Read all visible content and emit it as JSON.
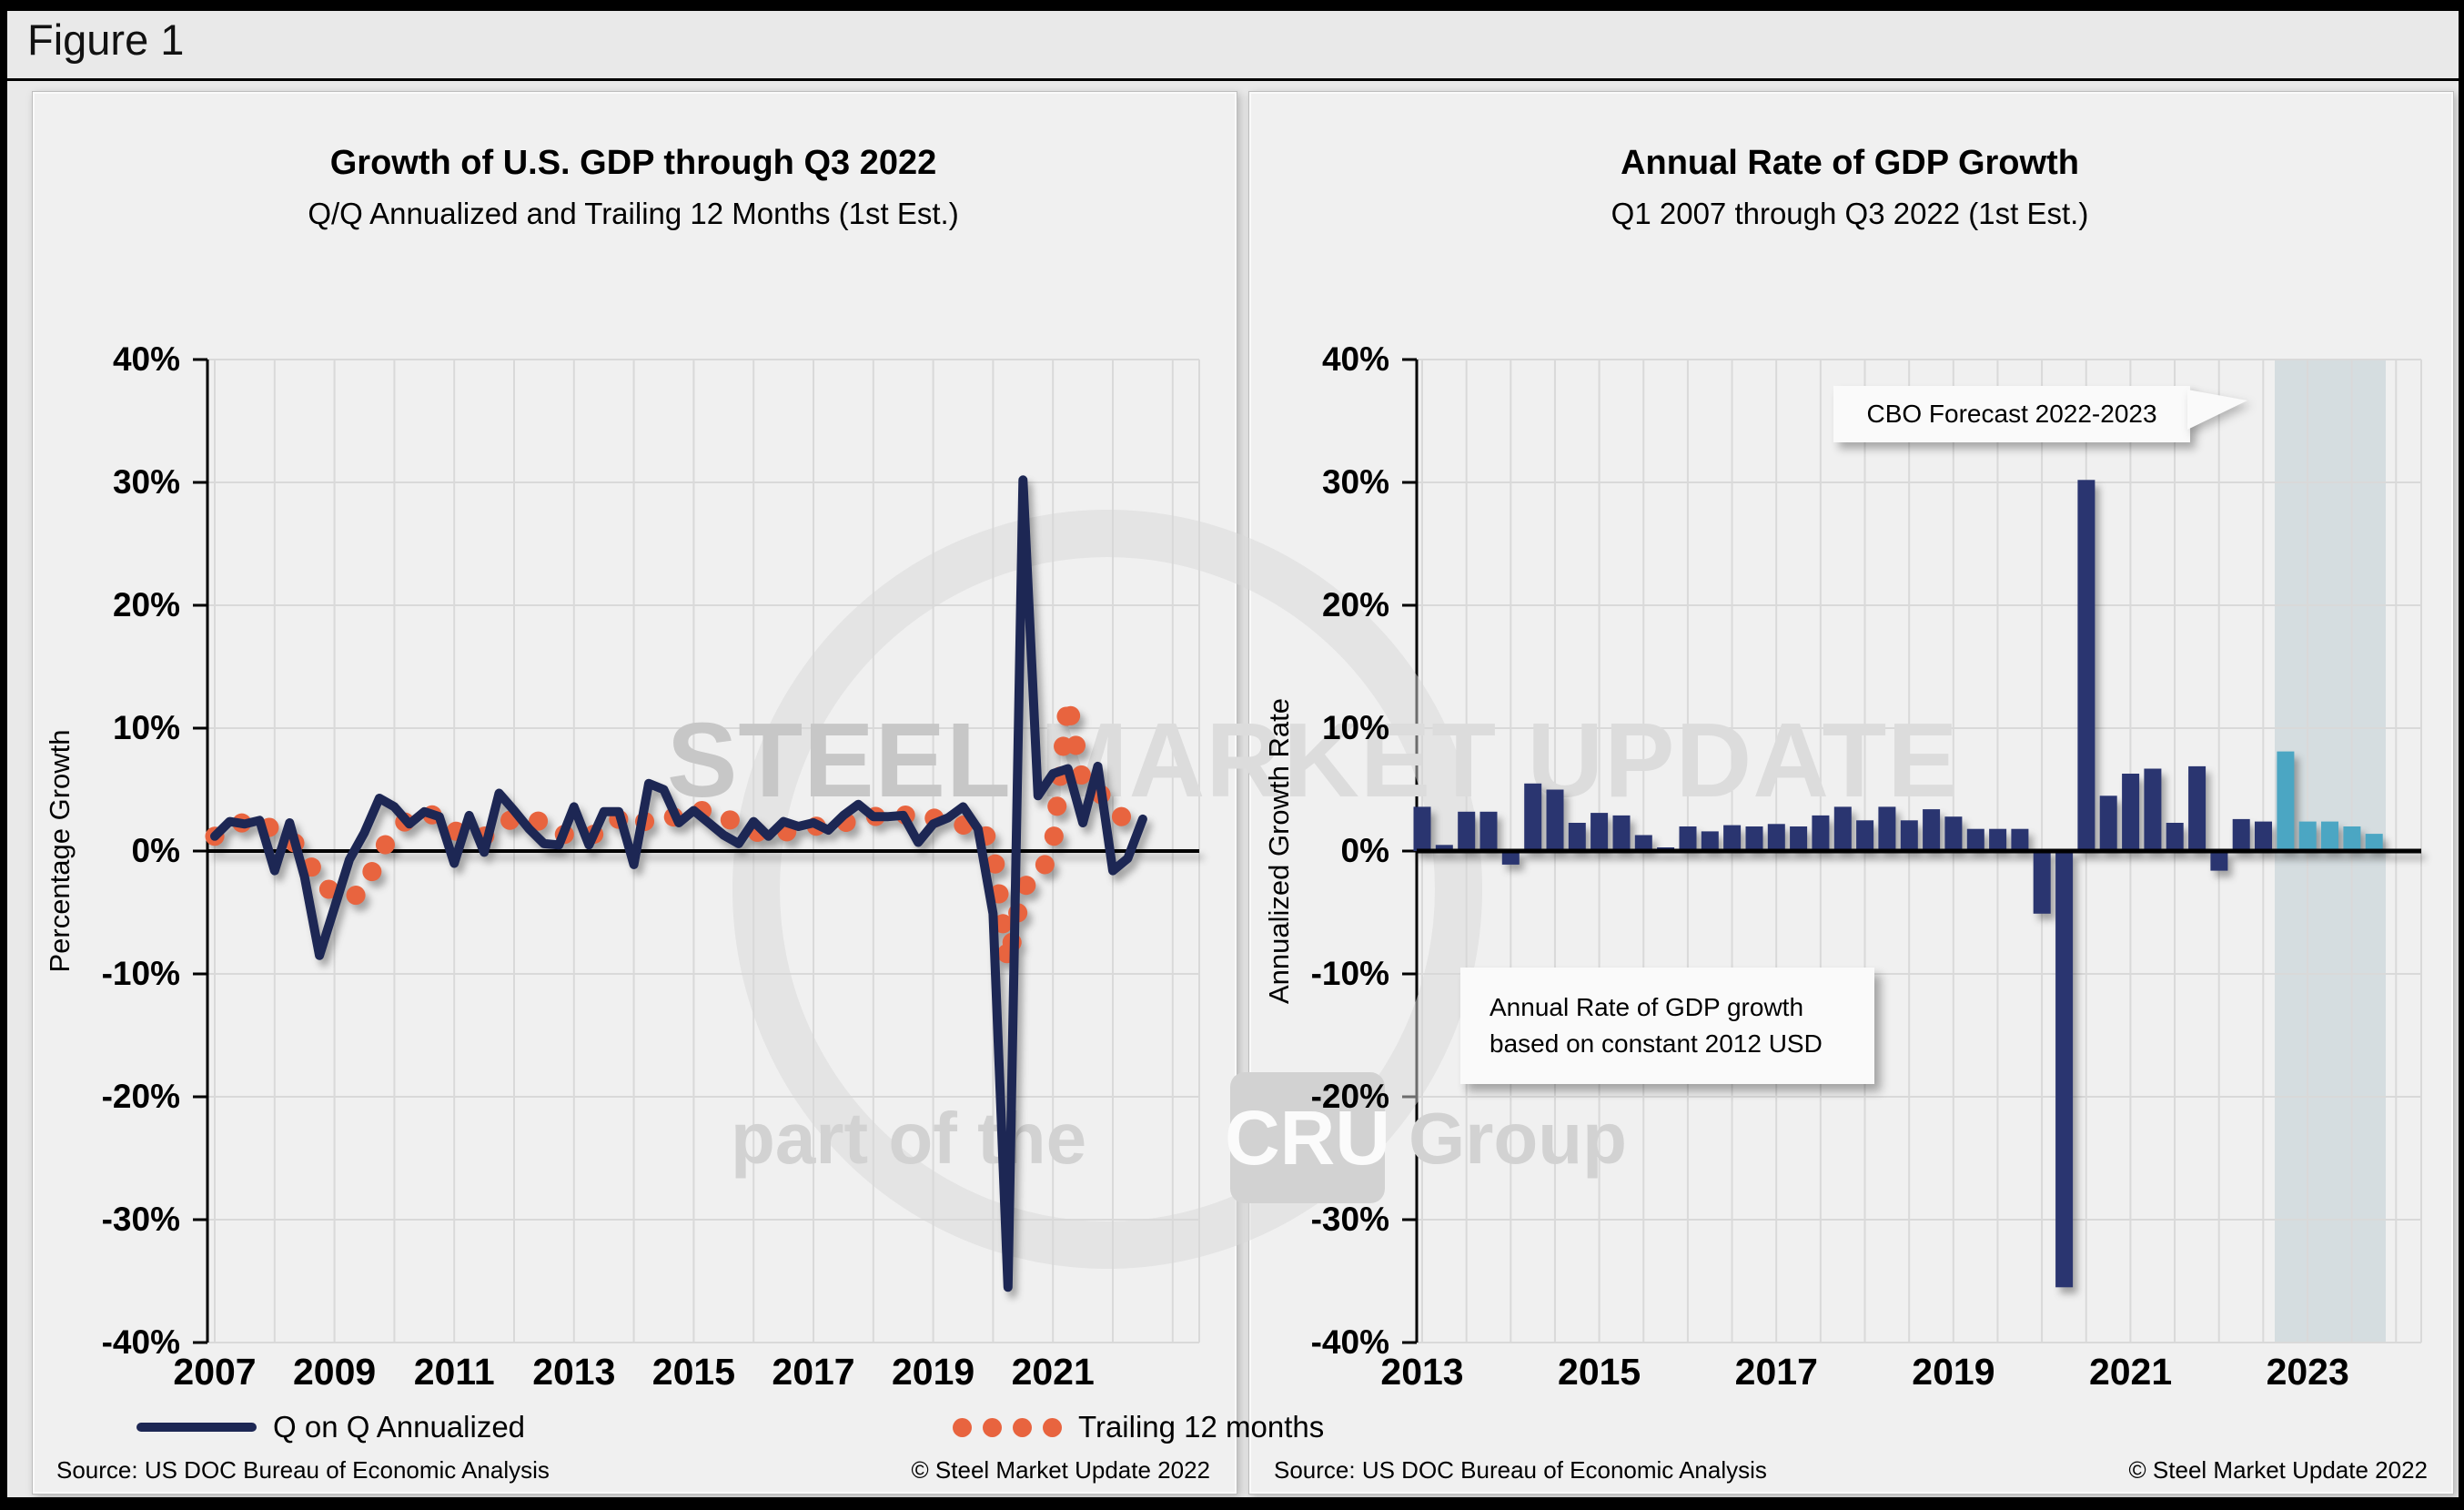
{
  "figure_label": "Figure 1",
  "watermark": {
    "steel": "STEEL",
    "market_update": " MARKET UPDATE",
    "part_of": "part of the",
    "cru": "CRU",
    "group": "Group"
  },
  "panels": {
    "left": {
      "title": "Growth of U.S. GDP through Q3 2022",
      "subtitle": "Q/Q Annualized and Trailing 12 Months (1st Est.)",
      "ylabel": "Percentage Growth",
      "legend": [
        "Q on Q Annualized",
        "Trailing 12 months"
      ],
      "source": "Source: US DOC Bureau of Economic Analysis",
      "copyright": "© Steel Market Update 2022"
    },
    "right": {
      "title": "Annual Rate of GDP Growth",
      "subtitle": "Q1 2007 through Q3 2022 (1st Est.)",
      "ylabel": "Annualized Growth Rate",
      "callout": "CBO Forecast 2022-2023",
      "note": "Annual Rate of GDP growth based on constant 2012 USD",
      "source": "Source: US DOC Bureau of Economic Analysis",
      "copyright": "© Steel Market Update 2022"
    }
  },
  "chart_data": [
    {
      "type": "line",
      "title": "Growth of U.S. GDP through Q3 2022",
      "subtitle": "Q/Q Annualized and Trailing 12 Months (1st Est.)",
      "ylabel": "Percentage Growth",
      "ylim": [
        -40,
        40
      ],
      "ytick_step": 10,
      "ytick_format": "percent",
      "x_start": "2007Q1",
      "x_end": "2022Q3",
      "xticks": [
        2007,
        2009,
        2011,
        2013,
        2015,
        2017,
        2019,
        2021
      ],
      "grid": true,
      "legend_position": "bottom",
      "series": [
        {
          "name": "Q on Q Annualized",
          "style": "solid-line",
          "color": "#1d2754",
          "values_by_year": {
            "2007": [
              1.2,
              2.4,
              2.2,
              2.5
            ],
            "2008": [
              -1.6,
              2.3,
              -2.1,
              -8.5
            ],
            "2009": [
              -4.6,
              -0.7,
              1.5,
              4.3
            ],
            "2010": [
              3.6,
              2.2,
              3.2,
              2.8
            ],
            "2011": [
              -1.0,
              2.9,
              -0.1,
              4.7
            ],
            "2012": [
              3.3,
              1.8,
              0.6,
              0.5
            ],
            "2013": [
              3.6,
              0.5,
              3.2,
              3.2
            ],
            "2014": [
              -1.1,
              5.5,
              5.0,
              2.3
            ],
            "2015": [
              3.3,
              2.3,
              1.3,
              0.6
            ],
            "2016": [
              2.4,
              1.2,
              2.4,
              2.0
            ],
            "2017": [
              2.3,
              1.7,
              2.9,
              3.8
            ],
            "2018": [
              2.8,
              2.8,
              2.9,
              0.7
            ],
            "2019": [
              2.2,
              2.7,
              3.6,
              1.8
            ],
            "2020": [
              -5.1,
              -35.5,
              30.2,
              4.5
            ],
            "2021": [
              6.3,
              6.7,
              2.3,
              6.9
            ],
            "2022": [
              -1.6,
              -0.6,
              2.6
            ]
          }
        },
        {
          "name": "Trailing 12 months",
          "style": "dotted-line",
          "color": "#e8643f",
          "values_by_year": {
            "2007": [
              1.2,
              1.8,
              2.4,
              2.5
            ],
            "2008": [
              1.6,
              1.0,
              0.0,
              -2.8
            ],
            "2009": [
              -3.3,
              -3.9,
              -3.2,
              -0.2
            ],
            "2010": [
              1.6,
              2.7,
              3.1,
              2.8
            ],
            "2011": [
              1.6,
              1.7,
              1.2,
              1.7
            ],
            "2012": [
              2.8,
              2.5,
              2.4,
              1.5
            ],
            "2013": [
              1.1,
              1.3,
              1.5,
              2.6
            ],
            "2014": [
              1.9,
              2.6,
              2.9,
              2.7
            ],
            "2015": [
              3.3,
              3.3,
              2.7,
              2.3
            ],
            "2016": [
              1.6,
              1.3,
              1.5,
              1.8
            ],
            "2017": [
              2.0,
              2.1,
              2.3,
              2.5
            ],
            "2018": [
              2.8,
              2.9,
              3.0,
              2.5
            ],
            "2019": [
              2.7,
              2.3,
              2.1,
              2.3
            ],
            "2020": [
              0.3,
              -9.1,
              -2.9,
              -2.4
            ],
            "2021": [
              0.4,
              12.2,
              5.5,
              4.9
            ],
            "2022": [
              3.5,
              2.3,
              1.8
            ]
          }
        }
      ]
    },
    {
      "type": "bar",
      "title": "Annual Rate of GDP Growth",
      "subtitle": "Q1 2007 through Q3 2022 (1st Est.)",
      "ylabel": "Annualized Growth Rate",
      "ylim": [
        -40,
        40
      ],
      "ytick_step": 10,
      "ytick_format": "percent",
      "x_start": "2013Q1",
      "x_end": "2023Q4",
      "xticks": [
        2013,
        2015,
        2017,
        2019,
        2021,
        2023
      ],
      "grid": true,
      "bar_color": "#2a3570",
      "forecast_color": "#4ba6c3",
      "forecast_start_index": 39,
      "forecast_band_label": "CBO Forecast 2022-2023",
      "annotation": "Annual Rate of GDP growth based on constant 2012 USD",
      "values_by_year": {
        "2013": [
          3.6,
          0.5,
          3.2,
          3.2
        ],
        "2014": [
          -1.1,
          5.5,
          5.0,
          2.3
        ],
        "2015": [
          3.1,
          2.9,
          1.3,
          0.3
        ],
        "2016": [
          2.0,
          1.6,
          2.1,
          2.0
        ],
        "2017": [
          2.2,
          2.0,
          2.9,
          3.6
        ],
        "2018": [
          2.5,
          3.6,
          2.5,
          3.4
        ],
        "2019": [
          2.8,
          1.8,
          1.8,
          1.8
        ],
        "2020": [
          -5.1,
          -35.5,
          30.2,
          4.5
        ],
        "2021": [
          6.3,
          6.7,
          2.3,
          6.9
        ],
        "2022": [
          -1.6,
          2.6,
          2.4,
          8.1
        ],
        "2023": [
          2.4,
          2.4,
          2.0,
          1.4
        ]
      }
    }
  ]
}
